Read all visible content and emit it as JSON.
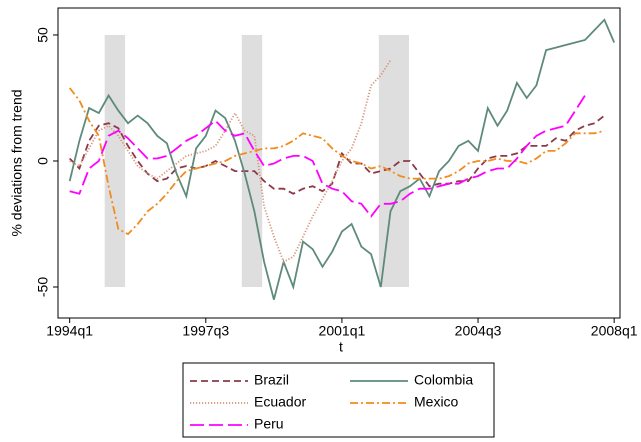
{
  "chart_data": {
    "type": "line",
    "x_label": "t",
    "y_label": "% deviations from trend",
    "x": [
      136,
      137,
      138,
      139,
      140,
      141,
      142,
      143,
      144,
      145,
      146,
      147,
      148,
      149,
      150,
      151,
      152,
      153,
      154,
      155,
      156,
      157,
      158,
      159,
      160,
      161,
      162,
      163,
      164,
      165,
      166,
      167,
      168,
      169,
      170,
      171,
      172,
      173,
      174,
      175,
      176,
      177,
      178,
      179,
      180,
      181,
      182,
      183,
      184,
      185,
      186,
      187,
      188,
      189,
      190,
      191,
      192
    ],
    "xlim": [
      134.8,
      192.6
    ],
    "xticks": [
      {
        "value": 136,
        "label": "1994q1"
      },
      {
        "value": 150,
        "label": "1997q3"
      },
      {
        "value": 164,
        "label": "2001q1"
      },
      {
        "value": 178,
        "label": "2004q3"
      },
      {
        "value": 192,
        "label": "2008q1"
      }
    ],
    "ylim": [
      -62.3,
      60.7
    ],
    "yticks": [
      -50,
      0,
      50
    ],
    "shaded_regions": [
      {
        "x": [
          139.6,
          141.7
        ],
        "y": [
          -50,
          50
        ]
      },
      {
        "x": [
          153.7,
          155.8
        ],
        "y": [
          -50,
          50
        ]
      },
      {
        "x": [
          167.8,
          170.9
        ],
        "y": [
          -50,
          50
        ]
      }
    ],
    "shade_color": "#dedede",
    "series": [
      {
        "name": "Brazil",
        "color": "#8b3a4a",
        "style": "dash",
        "values": [
          1,
          -3,
          8,
          14,
          15,
          13,
          6,
          0,
          -5,
          -8,
          -7,
          -3,
          -2,
          -3,
          -2,
          0,
          -2,
          -4,
          -4,
          -4,
          -8,
          -11,
          -11,
          -13,
          -11,
          -10,
          -12,
          -9,
          3,
          -1,
          -1,
          -5,
          -4,
          -3,
          0,
          0,
          -5,
          -10,
          -9,
          -9,
          -8,
          -8,
          -3,
          1,
          2,
          2,
          3,
          6,
          6,
          6,
          9,
          8,
          12,
          14,
          15,
          18,
          null
        ]
      },
      {
        "name": "Colombia",
        "color": "#5e8a7c",
        "style": "solid",
        "values": [
          -8,
          8,
          21,
          19,
          26,
          20,
          15,
          18,
          15,
          10,
          7,
          -5,
          -14,
          5,
          10,
          20,
          17,
          8,
          -5,
          -20,
          -40,
          -55,
          -40,
          -50,
          -32,
          -35,
          -42,
          -36,
          -28,
          -25,
          -34,
          -37,
          -50,
          -20,
          -12,
          -10,
          -7,
          -14,
          -4,
          0,
          6,
          8,
          4,
          21,
          14,
          20,
          31,
          25,
          30,
          44,
          45,
          46,
          47,
          48,
          52,
          56,
          47
        ]
      },
      {
        "name": "Ecuador",
        "color": "#d8937a",
        "style": "dot",
        "values": [
          0,
          -2,
          5,
          12,
          14,
          10,
          4,
          -2,
          -5,
          -7,
          -4,
          -1,
          2,
          3,
          4,
          6,
          12,
          19,
          12,
          10,
          -18,
          -30,
          -40,
          -38,
          -30,
          -22,
          -15,
          -8,
          0,
          5,
          15,
          30,
          34,
          40,
          null,
          null,
          null,
          null,
          null,
          null,
          null,
          null,
          null,
          null,
          null,
          null,
          null,
          null,
          null,
          null,
          null,
          null,
          null,
          null,
          null,
          null,
          null
        ]
      },
      {
        "name": "Mexico",
        "color": "#f28c1e",
        "style": "dashdot",
        "values": [
          29,
          24,
          16,
          10,
          -10,
          -27,
          -29,
          -25,
          -20,
          -17,
          -13,
          -8,
          -4,
          -3,
          -2,
          -1,
          0,
          2,
          3,
          4,
          5,
          5,
          6,
          8,
          11,
          10,
          9,
          5,
          2,
          0,
          -1,
          -3,
          -2,
          -4,
          -6,
          -7,
          -7,
          -7,
          -7,
          -6,
          -4,
          -1,
          0,
          0,
          1,
          0,
          0,
          -1,
          1,
          4,
          4,
          7,
          11,
          11,
          11,
          12,
          null
        ]
      },
      {
        "name": "Peru",
        "color": "#ff00ff",
        "style": "longdash",
        "values": [
          -12,
          -13,
          -3,
          0,
          10,
          12,
          9,
          5,
          1,
          1,
          2,
          5,
          8,
          10,
          13,
          16,
          12,
          10,
          11,
          4,
          -2,
          -1,
          1,
          2,
          2,
          0,
          -9,
          -11,
          -12,
          -16,
          -17,
          -22,
          -17,
          -17,
          -16,
          -13,
          -11,
          -11,
          -10,
          -9,
          -9,
          -7,
          -6,
          -4,
          -3,
          -3,
          1,
          6,
          10,
          12,
          13,
          14,
          20,
          26,
          null,
          null,
          null
        ]
      }
    ]
  }
}
